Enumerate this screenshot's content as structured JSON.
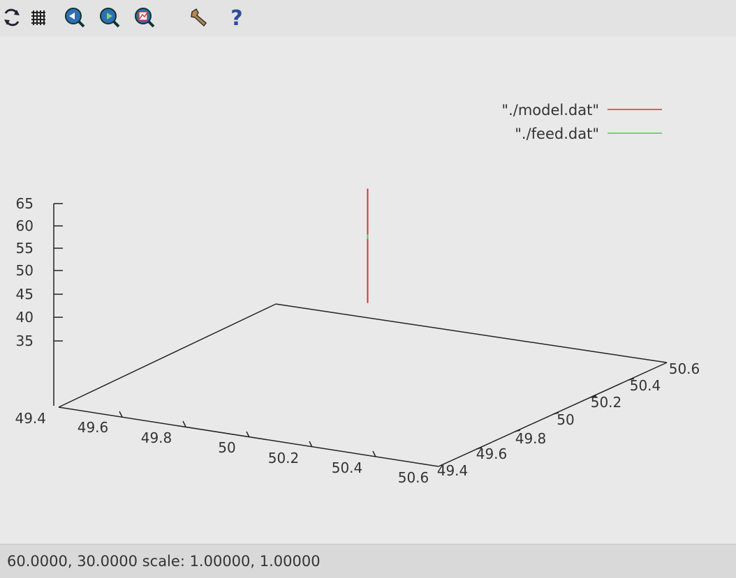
{
  "toolbar": {
    "buttons": [
      {
        "name": "replot-icon",
        "glyph": "⟳"
      },
      {
        "name": "grid-icon",
        "glyph": "#"
      },
      {
        "name": "zoom-prev-icon",
        "glyph": ""
      },
      {
        "name": "zoom-next-icon",
        "glyph": ""
      },
      {
        "name": "autoscale-icon",
        "glyph": ""
      },
      {
        "name": "settings-icon",
        "glyph": ""
      },
      {
        "name": "help-icon",
        "glyph": "?"
      }
    ]
  },
  "status": {
    "text": "60.0000, 30.0000  scale: 1.00000, 1.00000"
  },
  "chart_data": {
    "type": "line",
    "title": "",
    "legend": [
      {
        "label": "\"./model.dat\"",
        "color": "#e03030"
      },
      {
        "label": "\"./feed.dat\"",
        "color": "#50c850"
      }
    ],
    "legend_placement": "top-right",
    "x_axis": {
      "range": [
        49.4,
        50.6
      ],
      "ticks": [
        "49.6",
        "49.8",
        "50",
        "50.2",
        "50.4",
        "50.6"
      ]
    },
    "y_axis": {
      "range": [
        49.4,
        50.6
      ],
      "ticks": [
        "49.4",
        "49.6",
        "49.8",
        "50",
        "50.2",
        "50.4",
        "50.6"
      ]
    },
    "z_axis": {
      "ticks": [
        "65",
        "60",
        "55",
        "50",
        "45",
        "40",
        "35"
      ],
      "base_label": "49.4"
    },
    "series": [
      {
        "name": "\"./model.dat\"",
        "color": "#e03030",
        "x": [
          50,
          50
        ],
        "y": [
          50,
          50
        ],
        "z": [
          40,
          65
        ]
      },
      {
        "name": "\"./feed.dat\"",
        "color": "#50c850",
        "x": [
          50,
          50
        ],
        "y": [
          50,
          50
        ],
        "z": [
          54,
          55
        ]
      }
    ],
    "grid": false
  }
}
